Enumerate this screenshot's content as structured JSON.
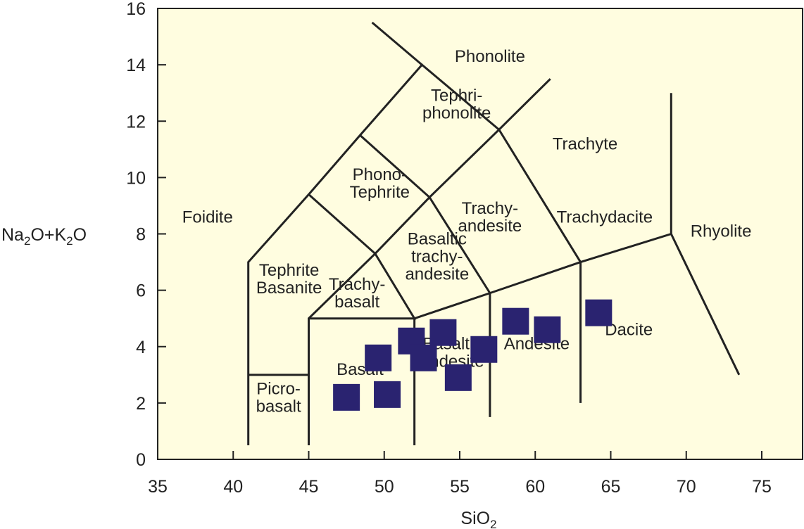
{
  "chart_data": {
    "type": "scatter",
    "diagram": "TAS",
    "xlabel": {
      "main": "SiO",
      "sub": "2",
      "tail": ""
    },
    "ylabel": {
      "parts": [
        {
          "t": "Na",
          "sub": false
        },
        {
          "t": "2",
          "sub": true
        },
        {
          "t": "O+K",
          "sub": false
        },
        {
          "t": "2",
          "sub": true
        },
        {
          "t": "O",
          "sub": false
        }
      ]
    },
    "xlim": [
      35,
      76
    ],
    "ylim": [
      0,
      16
    ],
    "x_ticks": [
      35,
      40,
      45,
      50,
      55,
      60,
      65,
      70,
      75
    ],
    "y_ticks": [
      0,
      2,
      4,
      6,
      8,
      10,
      12,
      14,
      16
    ],
    "grid": false,
    "colors": {
      "background": "#fffde0",
      "lines": "#222222",
      "markers": "#2a2370"
    },
    "boundaries": [
      [
        [
          41,
          0.5
        ],
        [
          41,
          7
        ],
        [
          45,
          9.4
        ],
        [
          48.4,
          11.5
        ],
        [
          52.5,
          14
        ],
        [
          57.6,
          11.7
        ],
        [
          63,
          7
        ],
        [
          63,
          2
        ]
      ],
      [
        [
          45,
          0.5
        ],
        [
          45,
          5
        ],
        [
          49.4,
          7.3
        ],
        [
          53,
          9.3
        ],
        [
          57.6,
          11.7
        ],
        [
          61,
          13.5
        ]
      ],
      [
        [
          52,
          0.5
        ],
        [
          52,
          5
        ],
        [
          57,
          5.9
        ],
        [
          63,
          7
        ],
        [
          69,
          8
        ],
        [
          69,
          13
        ]
      ],
      [
        [
          57,
          1.5
        ],
        [
          57,
          5.9
        ]
      ],
      [
        [
          41,
          3
        ],
        [
          45,
          3
        ]
      ],
      [
        [
          45,
          5
        ],
        [
          52,
          5
        ],
        [
          49.4,
          7.3
        ],
        [
          45,
          9.4
        ]
      ],
      [
        [
          48.4,
          11.5
        ],
        [
          53,
          9.3
        ],
        [
          57,
          5.9
        ]
      ],
      [
        [
          52.5,
          14
        ],
        [
          49.2,
          15.5
        ]
      ],
      [
        [
          69,
          8
        ],
        [
          73.5,
          3
        ]
      ]
    ],
    "fields": [
      {
        "name": "Phonolite",
        "lines": [
          "Phonolite"
        ],
        "x": 57,
        "y": 14.3
      },
      {
        "name": "Tephri-phonolite",
        "lines": [
          "Tephri-",
          "phonolite"
        ],
        "x": 54.8,
        "y": 12.6
      },
      {
        "name": "Trachyte",
        "lines": [
          "Trachyte"
        ],
        "x": 63.3,
        "y": 11.2
      },
      {
        "name": "Foidite",
        "lines": [
          "Foidite"
        ],
        "x": 38.3,
        "y": 8.6
      },
      {
        "name": "Phono-Tephrite",
        "lines": [
          "Phono-",
          "Tephrite"
        ],
        "x": 49.7,
        "y": 9.8
      },
      {
        "name": "Trachy-andesite",
        "lines": [
          "Trachy-",
          "andesite"
        ],
        "x": 57,
        "y": 8.6
      },
      {
        "name": "Trachydacite",
        "lines": [
          "Trachydacite"
        ],
        "x": 64.6,
        "y": 8.6
      },
      {
        "name": "Rhyolite",
        "lines": [
          "Rhyolite"
        ],
        "x": 72.3,
        "y": 8.1
      },
      {
        "name": "Tephrite Basanite",
        "lines": [
          "Tephrite",
          "Basanite"
        ],
        "x": 43.7,
        "y": 6.4
      },
      {
        "name": "Basaltic trachy-andesite",
        "lines": [
          "Basaltic",
          "trachy-",
          "andesite"
        ],
        "x": 53.5,
        "y": 7.2
      },
      {
        "name": "Trachy-basalt",
        "lines": [
          "Trachy-",
          "basalt"
        ],
        "x": 48.2,
        "y": 5.9
      },
      {
        "name": "Basalt",
        "lines": [
          "Basalt"
        ],
        "x": 48.4,
        "y": 3.2
      },
      {
        "name": "Basaltic andesite",
        "lines": [
          "Basaltic",
          "andesite"
        ],
        "x": 54.5,
        "y": 3.8
      },
      {
        "name": "Andesite",
        "lines": [
          "Andesite"
        ],
        "x": 60.1,
        "y": 4.1
      },
      {
        "name": "Dacite",
        "lines": [
          "Dacite"
        ],
        "x": 66.2,
        "y": 4.6
      },
      {
        "name": "Picro-basalt",
        "lines": [
          "Picro-",
          "basalt"
        ],
        "x": 43,
        "y": 2.2
      }
    ],
    "series": [
      {
        "marker": "square",
        "points": [
          {
            "x": 47.5,
            "y": 2.2
          },
          {
            "x": 49.6,
            "y": 3.6
          },
          {
            "x": 50.2,
            "y": 2.3
          },
          {
            "x": 51.8,
            "y": 4.2
          },
          {
            "x": 52.6,
            "y": 3.6
          },
          {
            "x": 53.9,
            "y": 4.5
          },
          {
            "x": 54.9,
            "y": 2.9
          },
          {
            "x": 56.6,
            "y": 3.9
          },
          {
            "x": 58.7,
            "y": 4.9
          },
          {
            "x": 60.8,
            "y": 4.6
          },
          {
            "x": 64.2,
            "y": 5.2
          }
        ]
      }
    ]
  }
}
